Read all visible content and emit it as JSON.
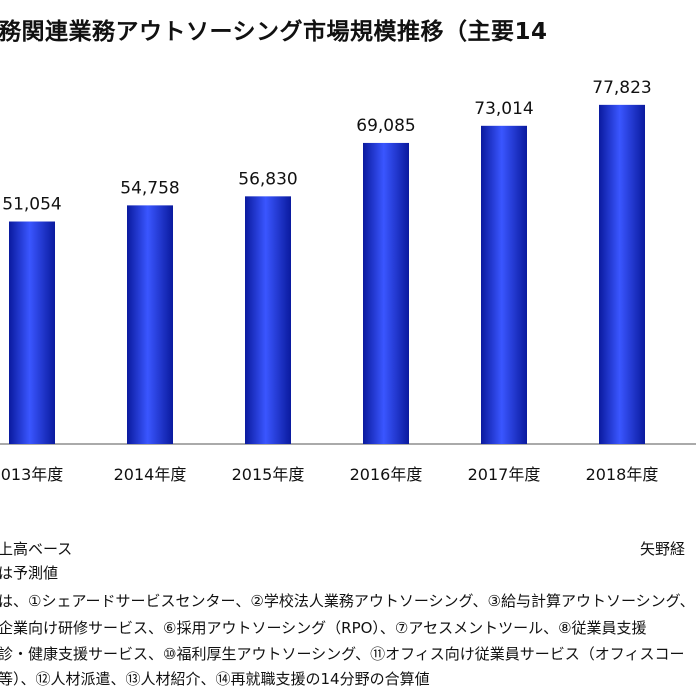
{
  "chart_data": {
    "type": "bar",
    "title": "務関連業務アウトソーシング市場規模推移（主要14",
    "categories": [
      "013年度",
      "2014年度",
      "2015年度",
      "2016年度",
      "2017年度",
      "2018年度"
    ],
    "values": [
      51054,
      54758,
      56830,
      69085,
      73014,
      77823
    ],
    "value_labels": [
      "51,054",
      "54,758",
      "56,830",
      "69,085",
      "73,014",
      "77,823"
    ],
    "ylim": [
      0,
      95000
    ],
    "bar_color": "#1a2fcc",
    "grid": false
  },
  "source": "矢野経",
  "notes": [
    "上高ベース",
    "は予測値",
    "は、①シェアードサービスセンター、②学校法人業務アウトソーシング、③給与計算アウトソーシング、",
    "企業向け研修サービス、⑥採用アウトソーシング（RPO）、⑦アセスメントツール、⑧従業員支援",
    "診・健康支援サービス、⑩福利厚生アウトソーシング、⑪オフィス向け従業員サービス（オフィスコー",
    "等）、⑫人材派遣、⑬人材紹介、⑭再就職支援の14分野の合算値"
  ]
}
